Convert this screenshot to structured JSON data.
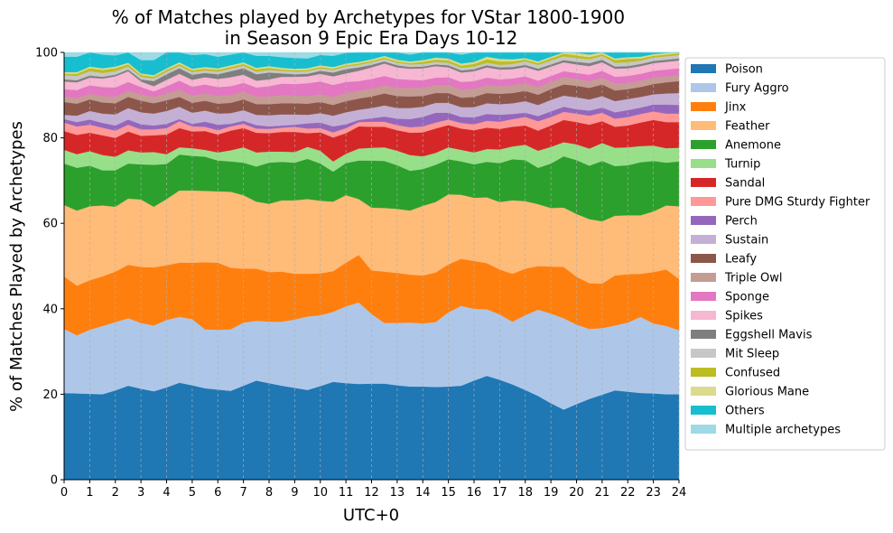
{
  "chart_data": {
    "type": "area",
    "stacked": true,
    "title": "% of Matches played by Archetypes for VStar 1800-1900\nin Season 9 Epic Era Days 10-12",
    "xlabel": "UTC+0",
    "ylabel": "% of Matches Played by Archetypes",
    "xlim": [
      0,
      24
    ],
    "ylim": [
      0,
      100
    ],
    "xticks": [
      "0",
      "1",
      "2",
      "3",
      "4",
      "5",
      "6",
      "7",
      "8",
      "9",
      "10",
      "11",
      "12",
      "13",
      "14",
      "15",
      "16",
      "17",
      "18",
      "19",
      "20",
      "21",
      "22",
      "23",
      "24"
    ],
    "yticks": [
      "0",
      "20",
      "40",
      "60",
      "80",
      "100"
    ],
    "grid": "vertical dashed",
    "legend_position": "outside-right",
    "x": [
      0,
      0.5,
      1,
      1.5,
      2,
      2.5,
      3,
      3.5,
      4,
      4.5,
      5,
      5.5,
      6,
      6.5,
      7,
      7.5,
      8,
      8.5,
      9,
      9.5,
      10,
      10.5,
      11,
      11.5,
      12,
      12.5,
      13,
      13.5,
      14,
      14.5,
      15,
      15.5,
      16,
      16.5,
      17,
      17.5,
      18,
      18.5,
      19,
      19.5,
      20,
      20.5,
      21,
      21.5,
      22,
      22.5,
      23,
      23.5,
      24
    ],
    "series": [
      {
        "name": "Poison",
        "color": "#1f77b4",
        "values": [
          20.3,
          20.2,
          20.1,
          20.0,
          20.9,
          22.0,
          21.3,
          20.7,
          21.6,
          22.7,
          22.1,
          21.4,
          21.1,
          20.8,
          22.0,
          23.2,
          22.6,
          22.0,
          21.5,
          21.0,
          21.9,
          22.9,
          22.6,
          22.4,
          22.5,
          22.5,
          22.1,
          21.8,
          21.8,
          21.7,
          21.8,
          22.0,
          23.2,
          24.3,
          23.4,
          22.3,
          21.0,
          19.6,
          17.9,
          16.4,
          17.7,
          18.9,
          19.9,
          20.9,
          20.6,
          20.3,
          20.2,
          20.0,
          20.0
        ]
      },
      {
        "name": "Fury Aggro",
        "color": "#aec7e8",
        "values": [
          15.0,
          13.6,
          15.0,
          16.0,
          16.0,
          15.8,
          15.4,
          15.4,
          15.8,
          15.4,
          15.5,
          13.8,
          14.0,
          14.4,
          14.8,
          14.0,
          14.4,
          15.0,
          16.0,
          17.2,
          16.6,
          16.4,
          18.0,
          19.1,
          16.3,
          14.2,
          14.6,
          15.0,
          14.8,
          15.2,
          17.4,
          18.7,
          16.8,
          15.6,
          15.3,
          14.7,
          17.5,
          20.2,
          21.0,
          21.4,
          18.6,
          16.4,
          15.6,
          15.2,
          16.2,
          17.8,
          16.4,
          16.0,
          15.0
        ]
      },
      {
        "name": "Jinx",
        "color": "#ff7f0e",
        "values": [
          12.3,
          11.6,
          11.6,
          11.6,
          11.8,
          12.5,
          13.1,
          13.6,
          12.8,
          12.7,
          13.2,
          15.7,
          15.7,
          14.4,
          12.6,
          12.2,
          11.6,
          11.7,
          10.7,
          10.0,
          9.8,
          9.5,
          10.2,
          11.1,
          10.2,
          12.0,
          11.7,
          11.2,
          11.2,
          11.6,
          11.2,
          11.0,
          11.2,
          10.8,
          10.5,
          11.2,
          10.9,
          10.2,
          11.0,
          12.0,
          11.2,
          10.7,
          10.4,
          11.7,
          11.3,
          10.1,
          12.0,
          13.2,
          12.0
        ]
      },
      {
        "name": "Feather",
        "color": "#ffbb78",
        "values": [
          16.7,
          17.6,
          17.3,
          16.6,
          15.2,
          15.5,
          15.8,
          14.2,
          15.5,
          16.9,
          16.9,
          16.7,
          16.7,
          17.8,
          17.2,
          15.7,
          16.0,
          16.7,
          17.2,
          17.5,
          17.0,
          16.3,
          15.8,
          13.1,
          14.7,
          14.9,
          15.0,
          15.0,
          16.3,
          16.5,
          16.4,
          15.0,
          14.8,
          15.4,
          15.8,
          17.2,
          15.8,
          14.5,
          13.7,
          13.9,
          14.7,
          15.0,
          14.6,
          14.0,
          13.8,
          13.7,
          14.2,
          15.0,
          17.0
        ]
      },
      {
        "name": "Anemone",
        "color": "#2ca02c",
        "values": [
          9.7,
          10.0,
          9.5,
          8.2,
          8.5,
          8.2,
          8.2,
          9.8,
          8.2,
          8.4,
          8.1,
          8.0,
          7.2,
          7.1,
          7.6,
          8.2,
          9.6,
          9.0,
          8.8,
          9.4,
          8.7,
          7.0,
          7.5,
          9.0,
          11.0,
          11.0,
          10.2,
          9.3,
          8.6,
          8.7,
          8.2,
          7.8,
          7.8,
          8.3,
          9.1,
          9.6,
          9.6,
          8.5,
          10.4,
          12.0,
          12.6,
          12.5,
          14.1,
          11.6,
          11.7,
          12.4,
          11.8,
          10.0,
          10.5
        ]
      },
      {
        "name": "Turnip",
        "color": "#98df8a",
        "values": [
          3.2,
          3.2,
          3.4,
          3.6,
          3.2,
          3.1,
          2.8,
          3.0,
          2.3,
          1.7,
          1.8,
          1.6,
          1.9,
          2.6,
          3.6,
          3.3,
          2.6,
          2.4,
          2.5,
          2.8,
          3.0,
          2.4,
          2.2,
          2.8,
          3.0,
          3.2,
          3.4,
          3.7,
          3.0,
          2.8,
          2.8,
          2.7,
          2.8,
          3.0,
          3.2,
          3.0,
          3.6,
          4.0,
          3.9,
          3.3,
          3.7,
          4.0,
          4.2,
          4.3,
          4.2,
          3.8,
          3.6,
          3.4,
          3.2
        ]
      },
      {
        "name": "Sandal",
        "color": "#d62728",
        "values": [
          4.4,
          4.5,
          4.3,
          4.6,
          4.4,
          4.4,
          3.9,
          3.9,
          4.6,
          4.5,
          3.9,
          4.4,
          4.2,
          4.6,
          4.5,
          4.6,
          4.3,
          4.6,
          4.7,
          3.2,
          4.3,
          5.6,
          4.8,
          5.2,
          4.9,
          4.8,
          4.8,
          5.2,
          5.6,
          5.7,
          5.2,
          5.0,
          5.2,
          5.0,
          4.8,
          4.6,
          4.5,
          4.7,
          5.0,
          5.2,
          5.2,
          5.6,
          5.1,
          4.9,
          5.1,
          5.5,
          6.0,
          6.1,
          6.0
        ]
      },
      {
        "name": "Pure DMG Sturdy Fighter",
        "color": "#ff9896",
        "values": [
          2.0,
          2.0,
          1.9,
          1.8,
          1.7,
          1.6,
          1.5,
          1.4,
          1.5,
          1.6,
          1.2,
          1.0,
          1.0,
          1.0,
          1.0,
          1.0,
          1.0,
          1.0,
          1.2,
          1.1,
          1.0,
          1.2,
          1.2,
          1.0,
          1.2,
          1.2,
          1.2,
          1.3,
          1.4,
          1.4,
          1.3,
          1.3,
          1.4,
          1.6,
          1.7,
          1.8,
          2.0,
          2.2,
          2.0,
          1.9,
          2.0,
          2.1,
          2.0,
          1.9,
          2.0,
          2.0,
          2.0,
          2.0,
          2.0
        ]
      },
      {
        "name": "Perch",
        "color": "#9467bd",
        "values": [
          0.8,
          1.0,
          1.2,
          1.1,
          1.2,
          1.2,
          1.2,
          0.9,
          1.0,
          0.5,
          0.6,
          1.2,
          1.3,
          0.6,
          0.7,
          0.8,
          0.6,
          0.5,
          0.5,
          1.2,
          1.3,
          1.4,
          0.9,
          0.5,
          0.8,
          1.2,
          1.5,
          1.9,
          2.2,
          2.3,
          1.6,
          1.4,
          1.6,
          1.6,
          1.6,
          1.2,
          1.0,
          1.2,
          1.3,
          1.2,
          1.0,
          1.2,
          1.2,
          1.5,
          1.6,
          1.5,
          1.6,
          2.1,
          2.0
        ]
      },
      {
        "name": "Sustain",
        "color": "#c5b0d5",
        "values": [
          1.0,
          1.5,
          2.0,
          2.2,
          2.6,
          2.7,
          2.8,
          2.8,
          3.0,
          2.9,
          2.6,
          2.6,
          2.6,
          2.5,
          2.5,
          2.4,
          2.6,
          2.6,
          2.4,
          2.0,
          2.2,
          2.5,
          2.8,
          2.4,
          2.4,
          2.6,
          2.5,
          2.6,
          2.4,
          2.3,
          2.3,
          2.3,
          2.4,
          2.5,
          2.5,
          2.5,
          2.7,
          2.6,
          2.7,
          2.6,
          2.8,
          2.6,
          2.7,
          2.6,
          2.6,
          2.5,
          2.4,
          2.6,
          2.8
        ]
      },
      {
        "name": "Leafy",
        "color": "#8c564b",
        "values": [
          3.0,
          2.8,
          2.7,
          2.6,
          2.6,
          2.6,
          2.7,
          2.4,
          2.5,
          2.3,
          2.3,
          2.3,
          2.3,
          2.4,
          2.5,
          2.5,
          2.6,
          2.6,
          2.6,
          2.6,
          2.6,
          2.5,
          2.6,
          2.6,
          2.7,
          2.8,
          2.8,
          2.7,
          2.5,
          2.3,
          2.3,
          2.2,
          2.4,
          2.4,
          2.4,
          2.4,
          2.4,
          2.4,
          2.5,
          2.6,
          2.7,
          2.7,
          2.7,
          2.5,
          2.3,
          2.3,
          2.4,
          2.6,
          2.8
        ]
      },
      {
        "name": "Triple Owl",
        "color": "#c49c94",
        "values": [
          1.3,
          1.3,
          1.3,
          1.5,
          1.5,
          1.5,
          1.5,
          1.5,
          1.6,
          1.7,
          1.7,
          1.7,
          1.8,
          1.8,
          1.8,
          1.8,
          1.8,
          1.9,
          1.8,
          1.8,
          1.8,
          1.9,
          1.9,
          1.9,
          1.9,
          1.9,
          1.9,
          2.0,
          1.9,
          1.9,
          1.9,
          1.9,
          1.9,
          1.9,
          1.8,
          1.8,
          1.8,
          1.8,
          1.7,
          1.7,
          1.6,
          1.6,
          1.6,
          1.6,
          1.5,
          1.5,
          1.5,
          1.4,
          1.4
        ]
      },
      {
        "name": "Sponge",
        "color": "#e377c2",
        "values": [
          1.7,
          1.9,
          2.0,
          2.1,
          2.2,
          2.0,
          1.7,
          1.3,
          1.7,
          2.1,
          2.1,
          2.1,
          2.1,
          2.1,
          2.1,
          2.1,
          2.4,
          2.7,
          2.7,
          3.0,
          3.0,
          2.8,
          2.6,
          2.2,
          2.2,
          2.2,
          2.1,
          1.9,
          1.8,
          1.7,
          1.8,
          1.8,
          1.8,
          1.7,
          1.6,
          1.6,
          1.6,
          1.5,
          1.4,
          1.4,
          1.4,
          1.5,
          1.6,
          1.6,
          1.6,
          1.6,
          1.6,
          1.6,
          1.6
        ]
      },
      {
        "name": "Spikes",
        "color": "#f7b6d2",
        "values": [
          1.8,
          1.8,
          1.8,
          2.0,
          2.6,
          2.5,
          1.3,
          1.2,
          1.5,
          1.6,
          1.6,
          1.7,
          1.9,
          2.1,
          1.9,
          1.6,
          1.6,
          1.6,
          1.7,
          1.6,
          1.8,
          2.0,
          2.0,
          2.4,
          2.7,
          2.9,
          2.7,
          2.6,
          2.8,
          2.7,
          2.3,
          2.2,
          2.3,
          2.4,
          2.3,
          2.2,
          2.2,
          2.3,
          2.2,
          2.1,
          2.0,
          2.0,
          2.0,
          1.9,
          1.8,
          1.8,
          1.8,
          1.8,
          1.8
        ]
      },
      {
        "name": "Eggshell Mavis",
        "color": "#7f7f7f",
        "values": [
          0.5,
          0.5,
          0.5,
          0.4,
          0.4,
          0.4,
          0.5,
          1.2,
          1.3,
          1.3,
          1.2,
          1.0,
          1.1,
          1.4,
          1.5,
          1.5,
          1.6,
          0.8,
          0.6,
          0.6,
          0.7,
          0.9,
          1.0,
          0.8,
          0.6,
          0.5,
          0.5,
          0.4,
          0.4,
          0.4,
          0.5,
          0.5,
          0.5,
          0.5,
          0.5,
          0.5,
          0.5,
          0.5,
          0.5,
          0.5,
          0.6,
          0.7,
          0.6,
          0.5,
          0.5,
          0.5,
          0.5,
          0.5,
          0.5
        ]
      },
      {
        "name": "Mit Sleep",
        "color": "#c7c7c7",
        "values": [
          1.0,
          1.0,
          1.0,
          0.9,
          0.8,
          0.7,
          0.6,
          0.6,
          0.6,
          0.6,
          0.6,
          0.6,
          0.6,
          0.6,
          0.6,
          0.6,
          0.6,
          0.6,
          0.6,
          0.6,
          0.6,
          0.6,
          0.6,
          0.6,
          0.6,
          0.6,
          0.6,
          0.6,
          0.6,
          0.6,
          0.6,
          0.6,
          0.6,
          0.6,
          0.6,
          0.7,
          0.8,
          0.9,
          0.9,
          0.9,
          0.9,
          0.9,
          0.9,
          0.9,
          0.9,
          0.8,
          0.8,
          0.8,
          0.8
        ]
      },
      {
        "name": "Confused",
        "color": "#bcbd22",
        "values": [
          0.3,
          0.5,
          0.7,
          0.7,
          0.7,
          0.5,
          0.4,
          0.4,
          0.4,
          0.4,
          0.4,
          0.4,
          0.4,
          0.4,
          0.4,
          0.5,
          0.5,
          0.3,
          0.3,
          0.3,
          0.3,
          0.3,
          0.3,
          0.3,
          0.3,
          0.3,
          0.3,
          0.3,
          0.5,
          0.5,
          0.5,
          0.5,
          0.6,
          0.8,
          0.8,
          0.6,
          0.4,
          0.4,
          0.5,
          0.6,
          0.6,
          0.5,
          0.4,
          0.6,
          0.8,
          0.5,
          0.4,
          0.4,
          0.4
        ]
      },
      {
        "name": "Glorious Mane",
        "color": "#dbdb8d",
        "values": [
          0.4,
          0.4,
          0.4,
          0.4,
          0.4,
          0.4,
          0.4,
          0.4,
          0.4,
          0.4,
          0.4,
          0.4,
          0.4,
          0.4,
          0.4,
          0.4,
          0.4,
          0.4,
          0.4,
          0.4,
          0.4,
          0.4,
          0.4,
          0.4,
          0.4,
          0.4,
          0.4,
          0.4,
          0.4,
          0.5,
          0.5,
          0.5,
          0.5,
          0.6,
          0.6,
          0.5,
          0.4,
          0.4,
          0.4,
          0.5,
          0.6,
          0.6,
          0.5,
          0.4,
          0.4,
          0.4,
          0.4,
          0.4,
          0.4
        ]
      },
      {
        "name": "Others",
        "color": "#17becf",
        "values": [
          3.6,
          3.6,
          3.5,
          3.2,
          2.6,
          2.4,
          3.1,
          3.5,
          3.7,
          3.3,
          3.2,
          3.0,
          2.7,
          2.5,
          2.5,
          2.8,
          2.4,
          2.5,
          2.5,
          2.3,
          2.4,
          2.6,
          2.5,
          2.4,
          2.2,
          1.9,
          1.7,
          1.6,
          1.9,
          2.0,
          2.0,
          2.1,
          2.2,
          2.4,
          2.4,
          2.5,
          2.6,
          2.7,
          2.8,
          2.8,
          2.9,
          3.0,
          3.0,
          3.0,
          3.0,
          2.8,
          3.0,
          2.8,
          2.8
        ]
      },
      {
        "name": "Multiple archetypes",
        "color": "#9edae5",
        "values": [
          1.0,
          1.0,
          1.5,
          2.3,
          2.7,
          1.8,
          2.6,
          2.8,
          1.8,
          1.0,
          2.3,
          2.2,
          2.8,
          2.4,
          1.8,
          2.4,
          2.3,
          2.9,
          3.2,
          3.0,
          2.8,
          2.6,
          2.7,
          2.2,
          2.7,
          2.8,
          3.2,
          3.5,
          2.9,
          2.5,
          3.0,
          3.1,
          2.5,
          2.2,
          3.0,
          3.6,
          3.7,
          3.3,
          3.4,
          3.6,
          3.5,
          3.6,
          3.9,
          4.4,
          4.6,
          4.6,
          4.3,
          4.4,
          4.6
        ]
      }
    ]
  }
}
